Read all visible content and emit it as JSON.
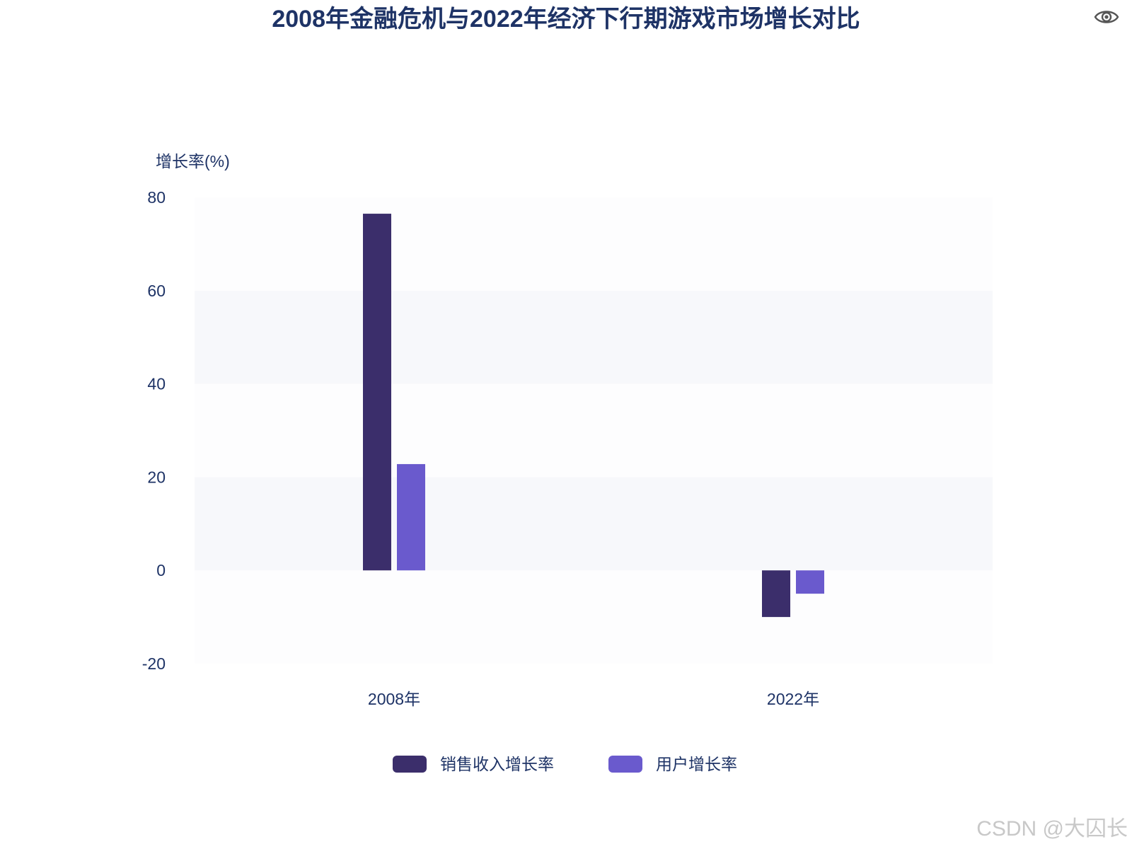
{
  "chart_data": {
    "type": "bar",
    "title": "2008年金融危机与2022年经济下行期游戏市场增长对比",
    "xlabel": "",
    "ylabel": "增长率(%)",
    "categories": [
      "2008年",
      "2022年"
    ],
    "series": [
      {
        "name": "销售收入增长率",
        "values": [
          76.5,
          -10
        ],
        "color": "#3b2e6b"
      },
      {
        "name": "用户增长率",
        "values": [
          22.8,
          -5
        ],
        "color": "#6a5acd"
      }
    ],
    "ylim": [
      -20,
      80
    ],
    "yticks": [
      -20,
      0,
      20,
      40,
      60,
      80
    ],
    "ytick_labels": [
      "-20",
      "0",
      "20",
      "40",
      "60",
      "80"
    ],
    "grid": "alternating bands",
    "legend_position": "bottom-center"
  },
  "colors": {
    "text": "#1e3366",
    "band_light": "#f7f8fb",
    "band_white": "#fdfdfe",
    "icon": "#555555"
  },
  "watermark": "CSDN @大囚长",
  "toolbar": {
    "visibility_icon": "eye-icon"
  }
}
